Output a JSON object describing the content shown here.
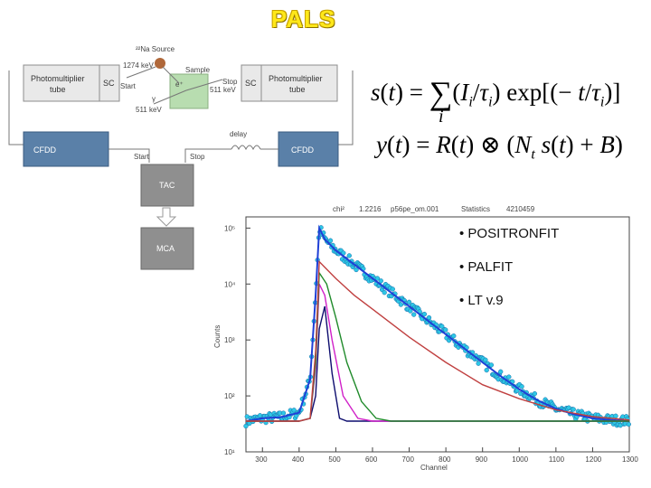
{
  "title": "PALS",
  "diagram": {
    "no_source": "²²Na Source",
    "gamma_1274": "1274 keV",
    "sample": "Sample",
    "gamma_511": "511 keV",
    "gamma_511_b": "511 keV",
    "pm_left": [
      "Photomultiplier",
      "tube"
    ],
    "pm_right": [
      "Photomultiplier",
      "tube"
    ],
    "sc": "SC",
    "start": "Start",
    "stop": "Stop",
    "cfdd": "CFDD",
    "delay": "delay",
    "tac": "TAC",
    "mca": "MCA",
    "gamma": "γ"
  },
  "equations": {
    "eq1": "s(t) = Σ (Iᵢ/τᵢ) exp[(−t/τᵢ)]",
    "eq2": "y(t) = R(t) ⊗ (Nₜ s(t) + B)"
  },
  "bullets": [
    "• POSITRONFIT",
    "• PALFIT",
    "• LT v.9"
  ],
  "chart_data": {
    "type": "scatter",
    "header": {
      "chi_label": "chi²",
      "chi_value": "1.2216",
      "file": "p56pe_om.001",
      "statistics_label": "Statistics",
      "statistics_value": "4210459"
    },
    "xlabel": "Channel",
    "ylabel": "Counts",
    "x_ticks": [
      300,
      400,
      500,
      600,
      700,
      800,
      900,
      1000,
      1100,
      1200,
      1300
    ],
    "y_ticks": [
      "10¹",
      "10²",
      "10³",
      "10⁴",
      "10⁵"
    ],
    "xlim": [
      255,
      1300
    ],
    "ylim_log10": [
      1,
      5.2
    ],
    "grid": false,
    "series": [
      {
        "color": "#1f3fd6",
        "x": [
          255,
          300,
          350,
          400,
          430,
          445,
          455,
          470,
          500,
          550,
          600,
          650,
          700,
          750,
          800,
          850,
          900,
          950,
          1000,
          1050,
          1100,
          1150,
          1200,
          1250,
          1300
        ],
        "y_log10": [
          1.55,
          1.6,
          1.62,
          1.7,
          2.3,
          3.8,
          5.0,
          4.8,
          4.6,
          4.35,
          4.1,
          3.85,
          3.6,
          3.35,
          3.1,
          2.85,
          2.6,
          2.35,
          2.12,
          1.92,
          1.77,
          1.67,
          1.6,
          1.57,
          1.55
        ]
      },
      {
        "color": "#0d0d6e",
        "x": [
          255,
          400,
          430,
          445,
          455,
          470,
          490,
          510,
          530,
          560,
          600,
          1300
        ],
        "y_log10": [
          1.55,
          1.55,
          1.6,
          2.0,
          3.2,
          3.6,
          2.4,
          1.6,
          1.55,
          1.55,
          1.55,
          1.55
        ]
      },
      {
        "color": "#d020c8",
        "x": [
          255,
          400,
          430,
          445,
          455,
          470,
          490,
          520,
          560,
          600,
          1300
        ],
        "y_log10": [
          1.55,
          1.55,
          1.6,
          2.5,
          4.0,
          3.8,
          3.0,
          2.0,
          1.6,
          1.55,
          1.55
        ]
      },
      {
        "color": "#1f8a2a",
        "x": [
          255,
          400,
          430,
          445,
          455,
          475,
          500,
          530,
          570,
          610,
          650,
          1300
        ],
        "y_log10": [
          1.55,
          1.55,
          1.6,
          2.6,
          4.2,
          4.0,
          3.4,
          2.6,
          1.9,
          1.6,
          1.55,
          1.55
        ]
      },
      {
        "color": "#c04040",
        "x": [
          255,
          400,
          430,
          445,
          455,
          470,
          500,
          550,
          600,
          650,
          700,
          800,
          900,
          1000,
          1100,
          1200,
          1300
        ],
        "y_log10": [
          1.55,
          1.55,
          1.6,
          2.8,
          4.4,
          4.3,
          4.1,
          3.8,
          3.55,
          3.3,
          3.05,
          2.6,
          2.2,
          1.95,
          1.75,
          1.63,
          1.57
        ]
      }
    ]
  }
}
